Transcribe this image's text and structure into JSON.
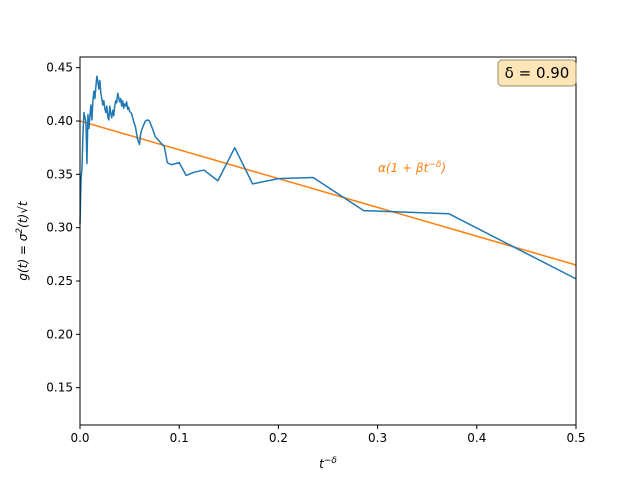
{
  "chart_data": {
    "type": "line",
    "xlabel": "t^-δ",
    "ylabel": "g(t) = σ²(t)√t",
    "xlim": [
      0.0,
      0.5
    ],
    "ylim": [
      0.115,
      0.46
    ],
    "xticks": [
      0.0,
      0.1,
      0.2,
      0.3,
      0.4,
      0.5
    ],
    "xtick_labels": [
      "0.0",
      "0.1",
      "0.2",
      "0.3",
      "0.4",
      "0.5"
    ],
    "yticks": [
      0.15,
      0.2,
      0.25,
      0.3,
      0.35,
      0.4,
      0.45
    ],
    "ytick_labels": [
      "0.15",
      "0.20",
      "0.25",
      "0.30",
      "0.35",
      "0.40",
      "0.45"
    ],
    "grid": false,
    "annotation_box": "δ = 0.90",
    "fit_label": "α(1 + βt^−δ)",
    "colors": {
      "data": "#1f77b4",
      "fit": "#ff7f0e",
      "box_fill": "#fde5b8",
      "box_edge": "#a08a66"
    },
    "series": [
      {
        "x": [
          0.0,
          0.001,
          0.002,
          0.003,
          0.004,
          0.005,
          0.006,
          0.007,
          0.008,
          0.009,
          0.01,
          0.011,
          0.012,
          0.013,
          0.014,
          0.015,
          0.016,
          0.017,
          0.018,
          0.019,
          0.02,
          0.021,
          0.022,
          0.023,
          0.024,
          0.025,
          0.026,
          0.027,
          0.028,
          0.029,
          0.03,
          0.031,
          0.032,
          0.033,
          0.034,
          0.035,
          0.036,
          0.037,
          0.038,
          0.039,
          0.04,
          0.041,
          0.042,
          0.043,
          0.044,
          0.045,
          0.046,
          0.047,
          0.048,
          0.049,
          0.05,
          0.052,
          0.054,
          0.056,
          0.058,
          0.06,
          0.061,
          0.062,
          0.064,
          0.066,
          0.068,
          0.07,
          0.073,
          0.076,
          0.08,
          0.085,
          0.088,
          0.092,
          0.1,
          0.107,
          0.115,
          0.125,
          0.139,
          0.156,
          0.174,
          0.2,
          0.235,
          0.286,
          0.372,
          0.5
        ],
        "y": [
          0.303,
          0.345,
          0.356,
          0.388,
          0.408,
          0.403,
          0.399,
          0.36,
          0.406,
          0.393,
          0.405,
          0.415,
          0.401,
          0.419,
          0.428,
          0.421,
          0.432,
          0.442,
          0.437,
          0.43,
          0.438,
          0.426,
          0.421,
          0.415,
          0.419,
          0.412,
          0.408,
          0.414,
          0.404,
          0.401,
          0.414,
          0.407,
          0.403,
          0.41,
          0.405,
          0.414,
          0.419,
          0.417,
          0.426,
          0.422,
          0.418,
          0.421,
          0.414,
          0.419,
          0.412,
          0.416,
          0.414,
          0.418,
          0.411,
          0.413,
          0.409,
          0.407,
          0.4,
          0.394,
          0.383,
          0.378,
          0.387,
          0.391,
          0.396,
          0.4,
          0.401,
          0.4,
          0.393,
          0.385,
          0.381,
          0.376,
          0.361,
          0.359,
          0.361,
          0.349,
          0.352,
          0.354,
          0.344,
          0.375,
          0.341,
          0.346,
          0.347,
          0.316,
          0.313,
          0.252
        ]
      },
      {
        "x": [
          0.0,
          0.5
        ],
        "y": [
          0.4,
          0.265
        ]
      }
    ]
  }
}
